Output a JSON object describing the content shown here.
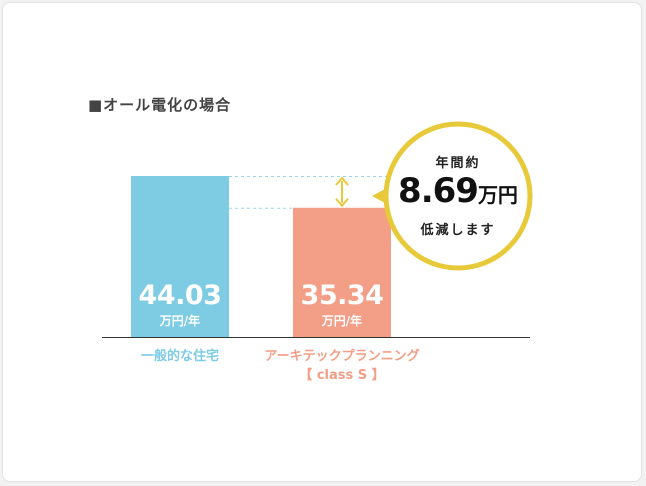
{
  "chart_data": {
    "type": "bar",
    "title": "■オール電化の場合",
    "categories": [
      "一般的な住宅",
      "アーキテックプランニング"
    ],
    "category_sublabels": [
      "",
      "【 class S 】"
    ],
    "values": [
      44.03,
      35.34
    ],
    "value_labels": [
      "44.03",
      "35.34"
    ],
    "unit": "万円/年",
    "colors": [
      "#7ecbe4",
      "#f39e86"
    ],
    "category_colors": [
      "#7ecbe4",
      "#f39e86"
    ],
    "ylim": [
      0,
      44.03
    ],
    "grid": false,
    "annotation": {
      "top": "年間約",
      "amount": "8.69",
      "amount_unit": "万円",
      "bottom": "低減します",
      "ring_color": "#e7c93a",
      "arrow_color": "#e7c93a"
    }
  }
}
